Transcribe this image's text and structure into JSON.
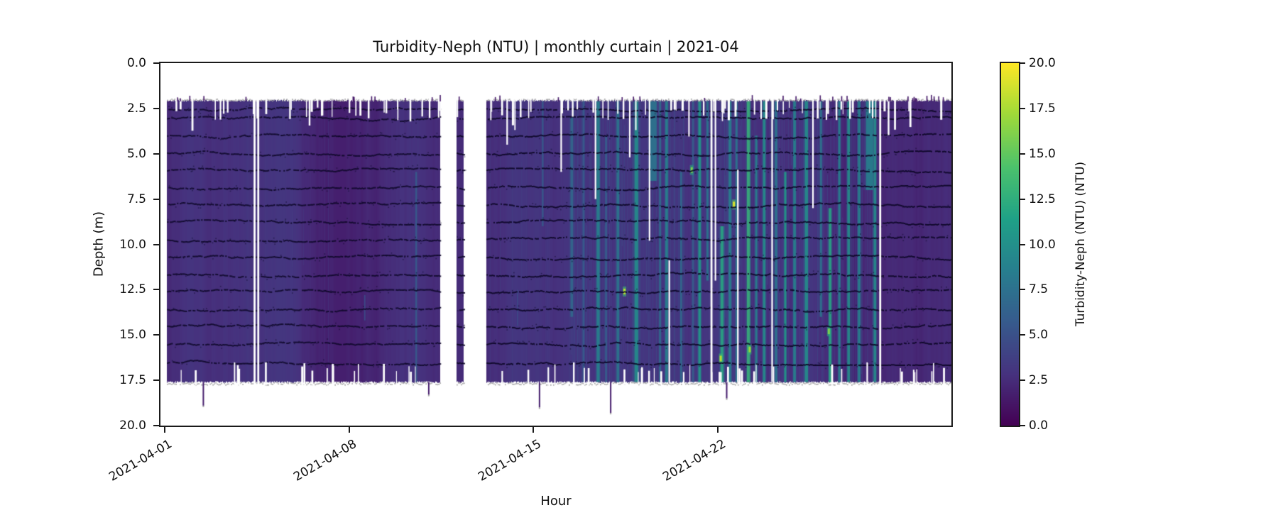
{
  "title": "Turbidity-Neph (NTU) | monthly curtain | 2021-04",
  "xlabel": "Hour",
  "ylabel": "Depth (m)",
  "colorbar": {
    "label": "Turbidity-Neph (NTU) (NTU)",
    "min": 0.0,
    "max": 20.0,
    "tick_values": [
      0.0,
      2.5,
      5.0,
      7.5,
      10.0,
      12.5,
      15.0,
      17.5,
      20.0
    ],
    "tick_labels": [
      "0.0",
      "2.5",
      "5.0",
      "7.5",
      "10.0",
      "12.5",
      "15.0",
      "17.5",
      "20.0"
    ]
  },
  "chart_data": {
    "type": "heatmap",
    "title": "Turbidity-Neph (NTU) | monthly curtain | 2021-04",
    "xlabel": "Hour",
    "ylabel": "Depth (m)",
    "value_label": "Turbidity-Neph (NTU) (NTU)",
    "clim": [
      0.0,
      20.0
    ],
    "colormap": {
      "name": "viridis",
      "stops": [
        [
          0.0,
          "#440154"
        ],
        [
          0.14,
          "#46327e"
        ],
        [
          0.29,
          "#365c8d"
        ],
        [
          0.43,
          "#277f8e"
        ],
        [
          0.57,
          "#1fa187"
        ],
        [
          0.71,
          "#4ac16d"
        ],
        [
          0.86,
          "#a0da39"
        ],
        [
          1.0,
          "#fde725"
        ]
      ]
    },
    "x_axis": {
      "domain_days": [
        -0.15,
        29.85
      ],
      "epoch": "2021-04-01",
      "tick_days": [
        0,
        7,
        14,
        21
      ],
      "tick_labels": [
        "2021-04-01",
        "2021-04-08",
        "2021-04-15",
        "2021-04-22"
      ],
      "label_rotation_deg": 30
    },
    "y_axis": {
      "min": 0,
      "max": 20,
      "ticks": [
        0,
        2.5,
        5,
        7.5,
        10,
        12.5,
        15,
        17.5,
        20
      ],
      "tick_labels": [
        "0.0",
        "2.5",
        "5.0",
        "7.5",
        "10.0",
        "12.5",
        "15.0",
        "17.5",
        "20.0"
      ],
      "direction": "depth-down"
    },
    "curtain": {
      "depth_top_m": 2.07,
      "depth_bottom_m": 17.6,
      "base_value_ntu": 2.4,
      "segments_days": [
        [
          0.1,
          10.45
        ],
        [
          11.08,
          11.35
        ],
        [
          12.21,
          29.85
        ]
      ],
      "sensor_line_depths_m": [
        2.5,
        3.05,
        4.0,
        4.95,
        5.9,
        6.85,
        7.8,
        8.75,
        9.7,
        10.7,
        11.65,
        12.6,
        13.55,
        14.5,
        15.5,
        16.5
      ],
      "washes": [
        [
          15.35,
          27.15,
          0.5,
          2.6,
          5.4
        ],
        [
          12.3,
          15.35,
          0.1,
          2.6,
          4.0
        ],
        [
          4.8,
          10.45,
          0.05,
          2.5,
          3.4
        ],
        [
          0.1,
          4.8,
          0.03,
          2.5,
          3.2
        ]
      ],
      "streaks": [
        [
          15.45,
          0.05,
          7,
          3.0,
          14.0
        ],
        [
          15.9,
          0.04,
          6,
          2.1,
          17.6
        ],
        [
          16.45,
          0.06,
          9,
          2.1,
          17.6
        ],
        [
          16.75,
          0.04,
          6,
          4.0,
          17.6
        ],
        [
          17.2,
          0.05,
          8,
          2.1,
          17.6
        ],
        [
          17.9,
          0.07,
          10,
          2.1,
          17.6
        ],
        [
          18.55,
          0.12,
          8,
          2.1,
          6.5
        ],
        [
          18.8,
          0.04,
          7,
          2.1,
          17.6
        ],
        [
          19.05,
          0.05,
          9,
          2.1,
          17.6
        ],
        [
          19.6,
          0.04,
          7,
          6.0,
          17.6
        ],
        [
          20.05,
          0.04,
          6,
          2.1,
          17.6
        ],
        [
          20.3,
          0.05,
          11,
          2.1,
          17.6
        ],
        [
          20.6,
          0.04,
          8,
          2.1,
          12.0
        ],
        [
          21.15,
          0.06,
          12,
          9.0,
          17.6
        ],
        [
          21.45,
          0.05,
          9,
          2.1,
          17.6
        ],
        [
          21.7,
          0.04,
          8,
          2.1,
          17.6
        ],
        [
          22.15,
          0.06,
          13,
          2.1,
          17.6
        ],
        [
          22.45,
          0.04,
          9,
          4.0,
          17.6
        ],
        [
          22.75,
          0.05,
          10,
          2.1,
          17.6
        ],
        [
          23.2,
          0.05,
          8,
          2.1,
          17.6
        ],
        [
          23.55,
          0.04,
          11,
          6.0,
          17.6
        ],
        [
          23.9,
          0.05,
          9,
          2.1,
          17.6
        ],
        [
          24.35,
          0.06,
          10,
          2.1,
          17.6
        ],
        [
          24.9,
          0.04,
          8,
          2.1,
          14.0
        ],
        [
          25.25,
          0.05,
          12,
          8.0,
          17.6
        ],
        [
          25.6,
          0.04,
          9,
          2.1,
          17.6
        ],
        [
          25.95,
          0.05,
          10,
          2.1,
          17.6
        ],
        [
          26.35,
          0.05,
          9,
          2.1,
          17.6
        ],
        [
          26.75,
          0.14,
          9,
          2.1,
          7.0
        ],
        [
          26.95,
          0.05,
          10,
          2.1,
          17.6
        ],
        [
          9.55,
          0.03,
          6,
          6.0,
          17.6
        ],
        [
          7.6,
          0.02,
          5,
          12.8,
          14.2
        ],
        [
          13.4,
          0.02,
          5,
          12.5,
          14.5
        ],
        [
          14.35,
          0.03,
          6,
          2.1,
          9.0
        ]
      ],
      "hotspots": [
        [
          17.45,
          12.6,
          18
        ],
        [
          20.0,
          5.9,
          16
        ],
        [
          21.6,
          7.8,
          19
        ],
        [
          21.1,
          16.3,
          18
        ],
        [
          25.2,
          14.8,
          16
        ],
        [
          22.2,
          15.8,
          17
        ]
      ],
      "white_lines_full_days": [
        3.42,
        3.56,
        20.75,
        27.15
      ],
      "white_lines_partial": [
        [
          16.35,
          2.0,
          7.5
        ],
        [
          17.65,
          2.0,
          5.2
        ],
        [
          18.4,
          2.0,
          9.8
        ],
        [
          19.15,
          11.0,
          17.6
        ],
        [
          20.9,
          2.0,
          12.0
        ],
        [
          21.75,
          6.0,
          17.6
        ],
        [
          23.05,
          2.0,
          17.6
        ],
        [
          24.6,
          2.0,
          8.0
        ],
        [
          13.0,
          2.0,
          4.5
        ],
        [
          15.05,
          2.0,
          6.0
        ]
      ],
      "bottom_spikes": [
        [
          1.45,
          18.9
        ],
        [
          10.0,
          18.3
        ],
        [
          14.2,
          19.0
        ],
        [
          16.9,
          19.3
        ],
        [
          21.3,
          18.5
        ]
      ],
      "noise_seed": 1234
    }
  }
}
